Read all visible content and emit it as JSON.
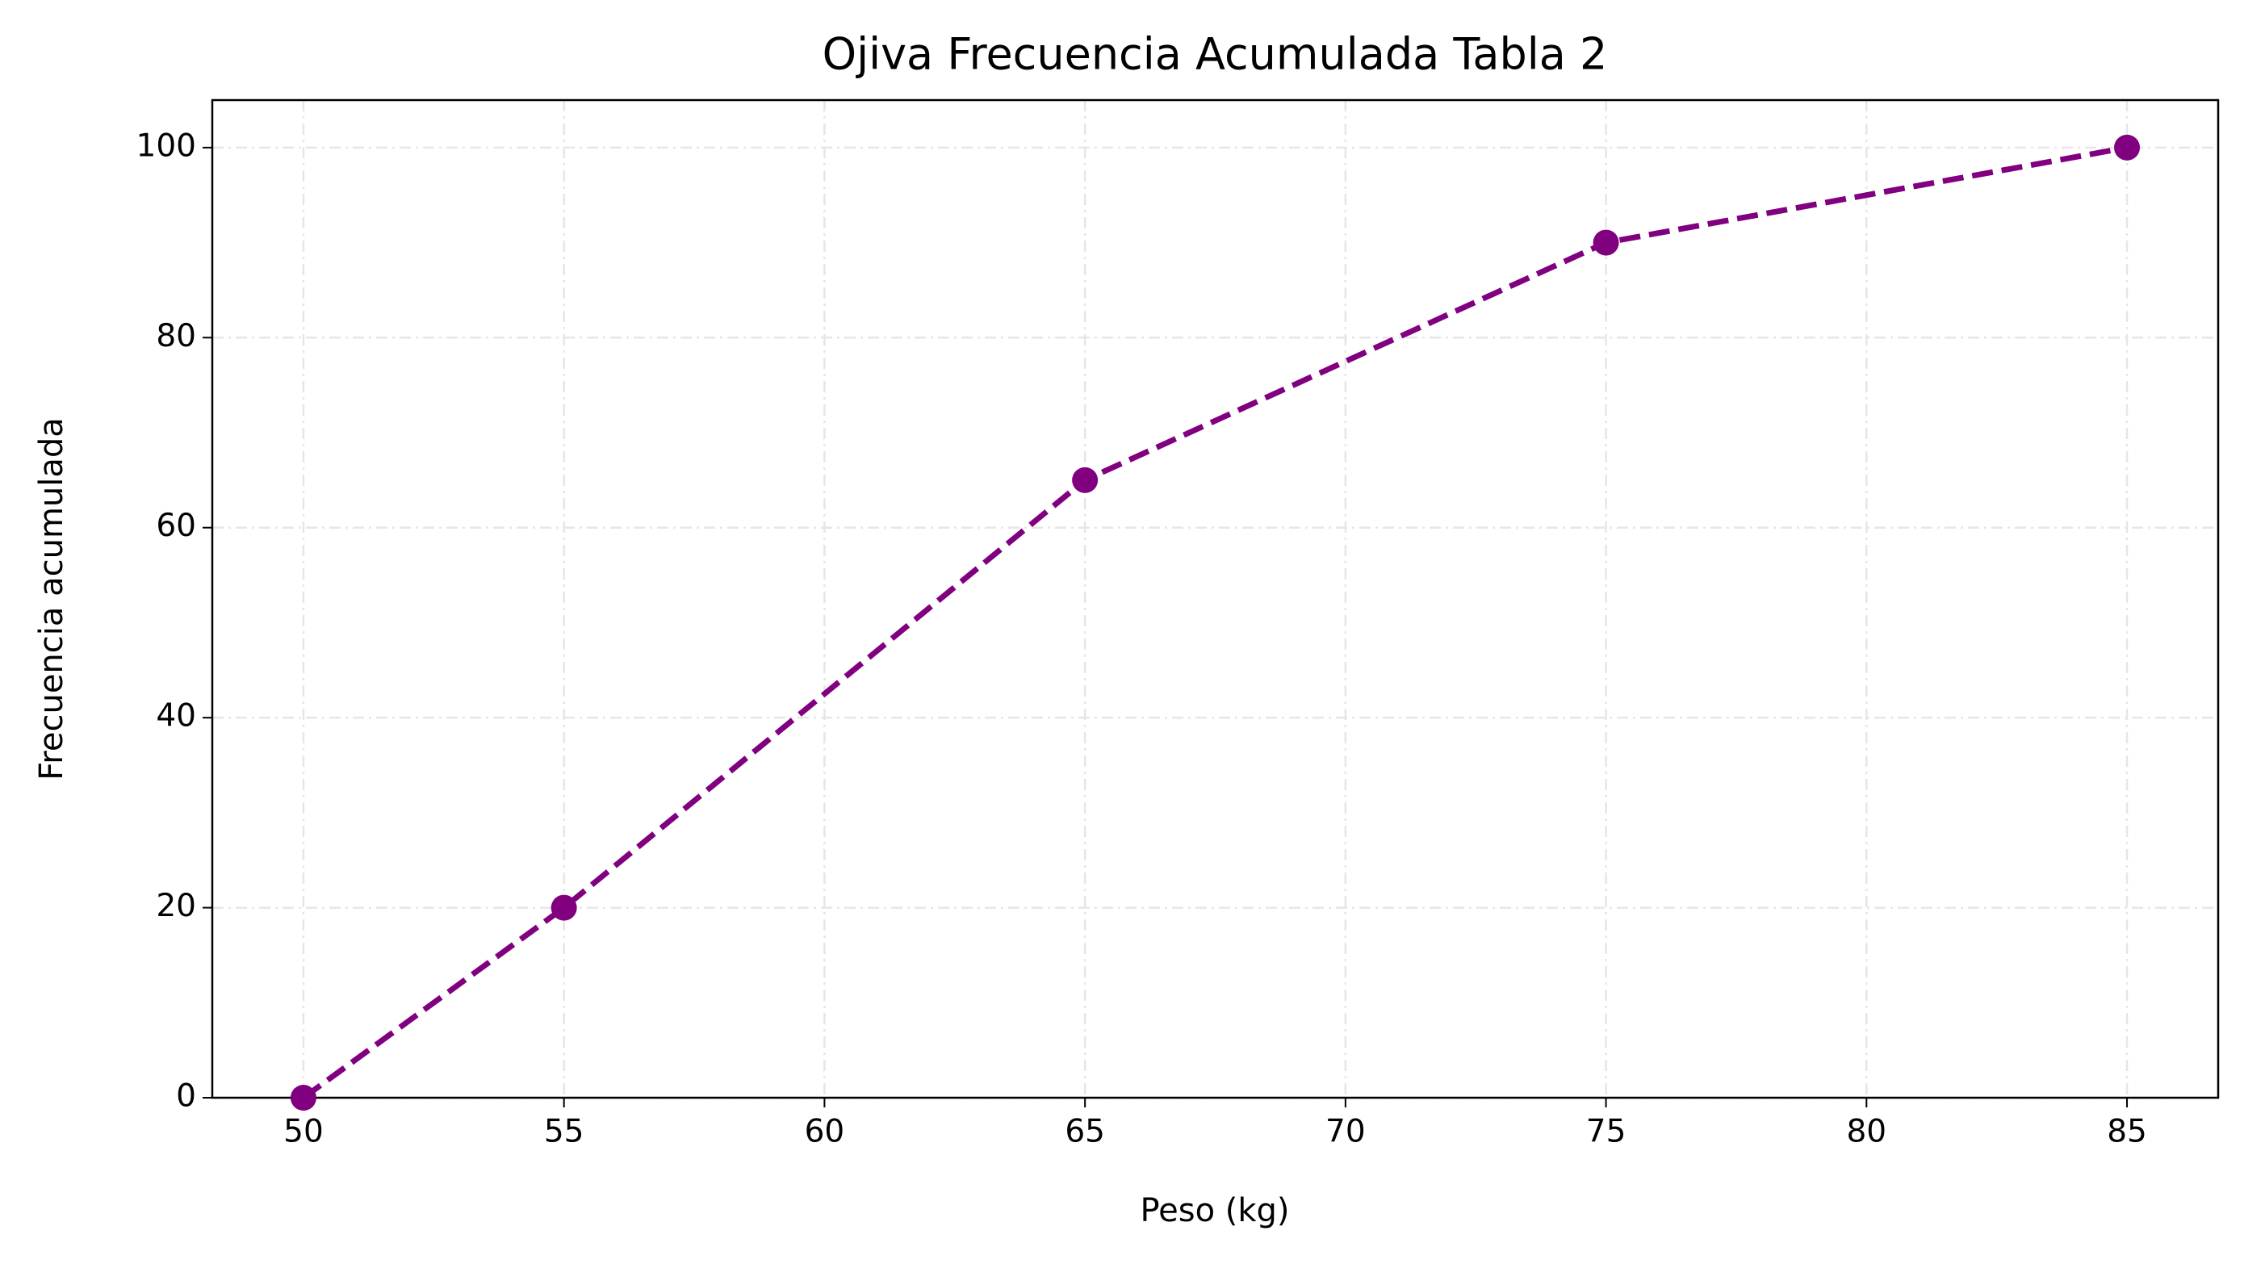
{
  "chart_data": {
    "type": "line",
    "title": "Ojiva Frecuencia Acumulada Tabla 2",
    "x_label": "Peso (kg)",
    "y_label": "Frecuencia acumulada",
    "x": [
      50,
      55,
      65,
      75,
      85
    ],
    "values": [
      0,
      20,
      65,
      90,
      100
    ],
    "color": "#800080",
    "line_style": "dashed",
    "marker": "circle",
    "xlim": [
      48.25,
      86.75
    ],
    "xticks": [
      50,
      55,
      60,
      65,
      70,
      75,
      80,
      85
    ],
    "ylim": [
      0,
      105
    ],
    "yticks": [
      0,
      20,
      40,
      60,
      80,
      100
    ],
    "grid": true
  }
}
